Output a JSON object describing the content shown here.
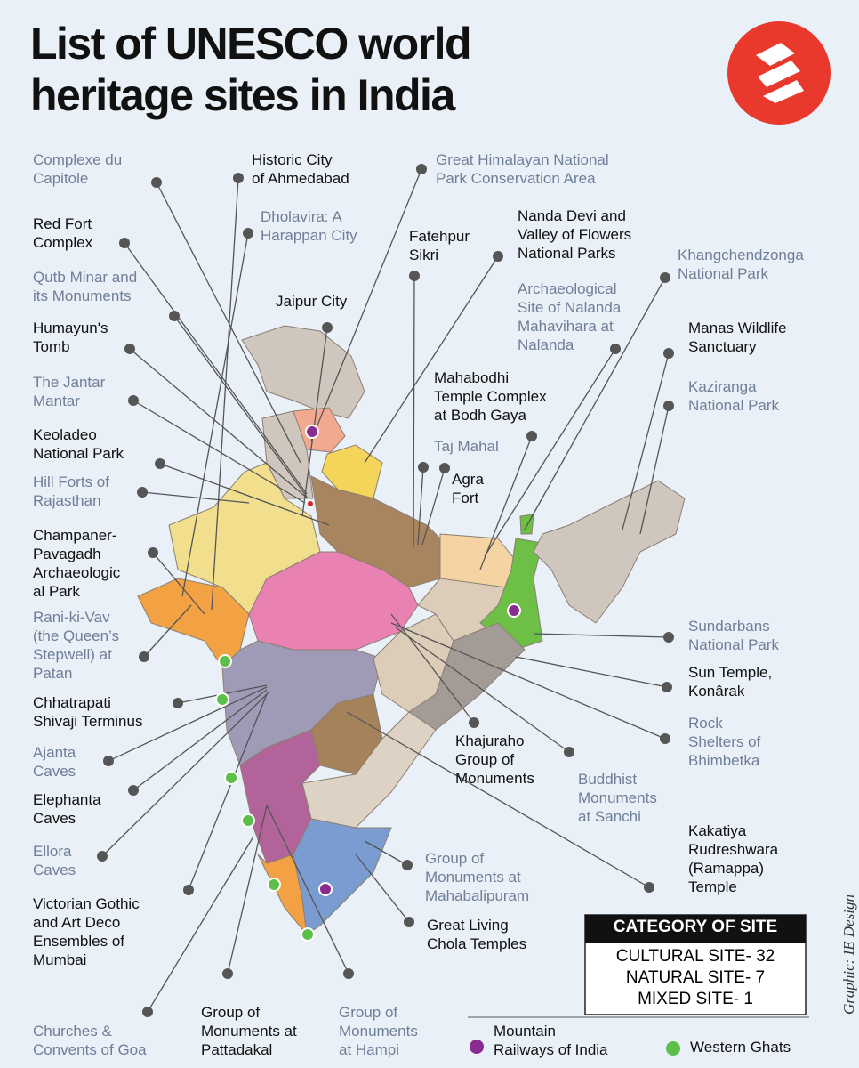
{
  "header": {
    "title": [
      "List of UNESCO world",
      "heritage sites in India"
    ],
    "credit": "Graphic: IE Design"
  },
  "sites": [
    {
      "lines": [
        "Complexe du",
        "Capitole"
      ],
      "color": "#6f7f98"
    },
    {
      "lines": [
        "Red Fort",
        "Complex"
      ],
      "color": "#111111"
    },
    {
      "lines": [
        "Qutb Minar and",
        "its Monuments"
      ],
      "color": "#6f7f98"
    },
    {
      "lines": [
        "Humayun's",
        "Tomb"
      ],
      "color": "#111111"
    },
    {
      "lines": [
        "The Jantar",
        "Mantar"
      ],
      "color": "#6f7f98"
    },
    {
      "lines": [
        "Keoladeo",
        "National Park"
      ],
      "color": "#111111"
    },
    {
      "lines": [
        "Hill Forts of",
        "Rajasthan"
      ],
      "color": "#6f7f98"
    },
    {
      "lines": [
        "Champaner-",
        "Pavagadh",
        "Archaeologic",
        "al Park"
      ],
      "color": "#111111"
    },
    {
      "lines": [
        "Rani-ki-Vav",
        "(the Queen’s",
        "Stepwell) at",
        "Patan"
      ],
      "color": "#6f7f98"
    },
    {
      "lines": [
        "Chhatrapati",
        "Shivaji Terminus"
      ],
      "color": "#111111"
    },
    {
      "lines": [
        "Ajanta",
        "Caves"
      ],
      "color": "#6f7f98"
    },
    {
      "lines": [
        "Elephanta",
        "Caves"
      ],
      "color": "#111111"
    },
    {
      "lines": [
        "Ellora",
        "Caves"
      ],
      "color": "#6f7f98"
    },
    {
      "lines": [
        "Victorian Gothic",
        "and Art Deco",
        "Ensembles of",
        "Mumbai"
      ],
      "color": "#111111"
    },
    {
      "lines": [
        "Churches &",
        "Convents of Goa"
      ],
      "color": "#6f7f98"
    },
    {
      "lines": [
        "Historic City",
        "of Ahmedabad"
      ],
      "color": "#111111"
    },
    {
      "lines": [
        "Dholavira: A",
        "Harappan City"
      ],
      "color": "#6f7f98"
    },
    {
      "lines": [
        "Jaipur City"
      ],
      "color": "#111111"
    },
    {
      "lines": [
        "Great Himalayan National",
        "Park Conservation Area"
      ],
      "color": "#6f7f98"
    },
    {
      "lines": [
        "Fatehpur",
        "Sikri"
      ],
      "color": "#111111"
    },
    {
      "lines": [
        "Nanda Devi and",
        "Valley of Flowers",
        "National Parks"
      ],
      "color": "#111111"
    },
    {
      "lines": [
        "Khangchendzonga",
        "National Park"
      ],
      "color": "#6f7f98"
    },
    {
      "lines": [
        "Archaeological",
        "Site of Nalanda",
        "Mahavihara at",
        "Nalanda"
      ],
      "color": "#6f7f98"
    },
    {
      "lines": [
        "Manas Wildlife",
        "Sanctuary"
      ],
      "color": "#111111"
    },
    {
      "lines": [
        "Kaziranga",
        "National Park"
      ],
      "color": "#6f7f98"
    },
    {
      "lines": [
        "Mahabodhi",
        "Temple Complex",
        "at Bodh Gaya"
      ],
      "color": "#111111"
    },
    {
      "lines": [
        "Taj Mahal"
      ],
      "color": "#6f7f98"
    },
    {
      "lines": [
        "Agra",
        "Fort"
      ],
      "color": "#111111"
    },
    {
      "lines": [
        "Sundarbans",
        "National Park"
      ],
      "color": "#6f7f98"
    },
    {
      "lines": [
        "Sun Temple,",
        "Konârak"
      ],
      "color": "#111111"
    },
    {
      "lines": [
        "Rock",
        "Shelters of",
        "Bhimbetka"
      ],
      "color": "#6f7f98"
    },
    {
      "lines": [
        "Khajuraho",
        "Group of",
        "Monuments"
      ],
      "color": "#111111"
    },
    {
      "lines": [
        "Buddhist",
        "Monuments",
        "at Sanchi"
      ],
      "color": "#6f7f98"
    },
    {
      "lines": [
        "Kakatiya",
        "Rudreshwara",
        "(Ramappa)",
        "Temple"
      ],
      "color": "#111111"
    },
    {
      "lines": [
        "Group of",
        "Monuments at",
        "Mahabalipuram"
      ],
      "color": "#6f7f98"
    },
    {
      "lines": [
        "Great Living",
        "Chola Temples"
      ],
      "color": "#111111"
    },
    {
      "lines": [
        "Group of",
        "Monuments at",
        "Pattadakal"
      ],
      "color": "#111111"
    },
    {
      "lines": [
        "Group of",
        "Monuments",
        "at Hampi"
      ],
      "color": "#6f7f98"
    }
  ],
  "category": {
    "title": "CATEGORY OF SITE",
    "rows": [
      "CULTURAL SITE- 32",
      "NATURAL SITE- 7",
      "MIXED SITE- 1"
    ]
  },
  "legend": [
    {
      "lines": [
        "Mountain",
        "Railways of India"
      ],
      "color": "#8a2c8f"
    },
    {
      "lines": [
        "Western Ghats"
      ],
      "color": "#5cbf4a"
    }
  ]
}
